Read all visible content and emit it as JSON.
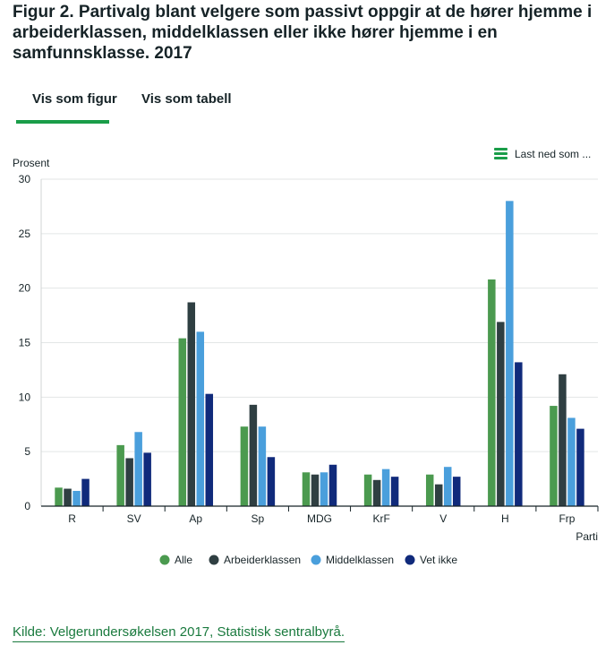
{
  "title": "Figur 2. Partivalg blant velgere som passivt oppgir at de hører hjemme i arbeiderklassen, middelklassen eller ikke hører hjemme i en samfunnsklasse. 2017",
  "tabs": [
    {
      "label": "Vis som figur",
      "active": true
    },
    {
      "label": "Vis som tabell",
      "active": false
    }
  ],
  "download": {
    "label": "Last ned som ..."
  },
  "source": "Kilde: Velgerundersøkelsen 2017, Statistisk sentralbyrå.",
  "colors": {
    "Alle": "#4b9a4f",
    "Arbeiderklassen": "#2f3f42",
    "Middelklassen": "#4a9fdc",
    "Vet ikke": "#102a7b",
    "accent": "#1a9d49"
  },
  "chart_data": {
    "type": "bar",
    "ylabel": "Prosent",
    "xlabel": "Parti",
    "ylim": [
      0,
      30
    ],
    "yticks": [
      0,
      5,
      10,
      15,
      20,
      25,
      30
    ],
    "categories": [
      "R",
      "SV",
      "Ap",
      "Sp",
      "MDG",
      "KrF",
      "V",
      "H",
      "Frp"
    ],
    "series": [
      {
        "name": "Alle",
        "values": [
          1.7,
          5.6,
          15.4,
          7.3,
          3.1,
          2.9,
          2.9,
          20.8,
          9.2
        ]
      },
      {
        "name": "Arbeiderklassen",
        "values": [
          1.6,
          4.4,
          18.7,
          9.3,
          2.9,
          2.4,
          2.0,
          16.9,
          12.1
        ]
      },
      {
        "name": "Middelklassen",
        "values": [
          1.4,
          6.8,
          16.0,
          7.3,
          3.1,
          3.4,
          3.6,
          28.0,
          8.1
        ]
      },
      {
        "name": "Vet ikke",
        "values": [
          2.5,
          4.9,
          10.3,
          4.5,
          3.8,
          2.7,
          2.7,
          13.2,
          7.1
        ]
      }
    ],
    "legend": [
      "Alle",
      "Arbeiderklassen",
      "Middelklassen",
      "Vet ikke"
    ]
  }
}
